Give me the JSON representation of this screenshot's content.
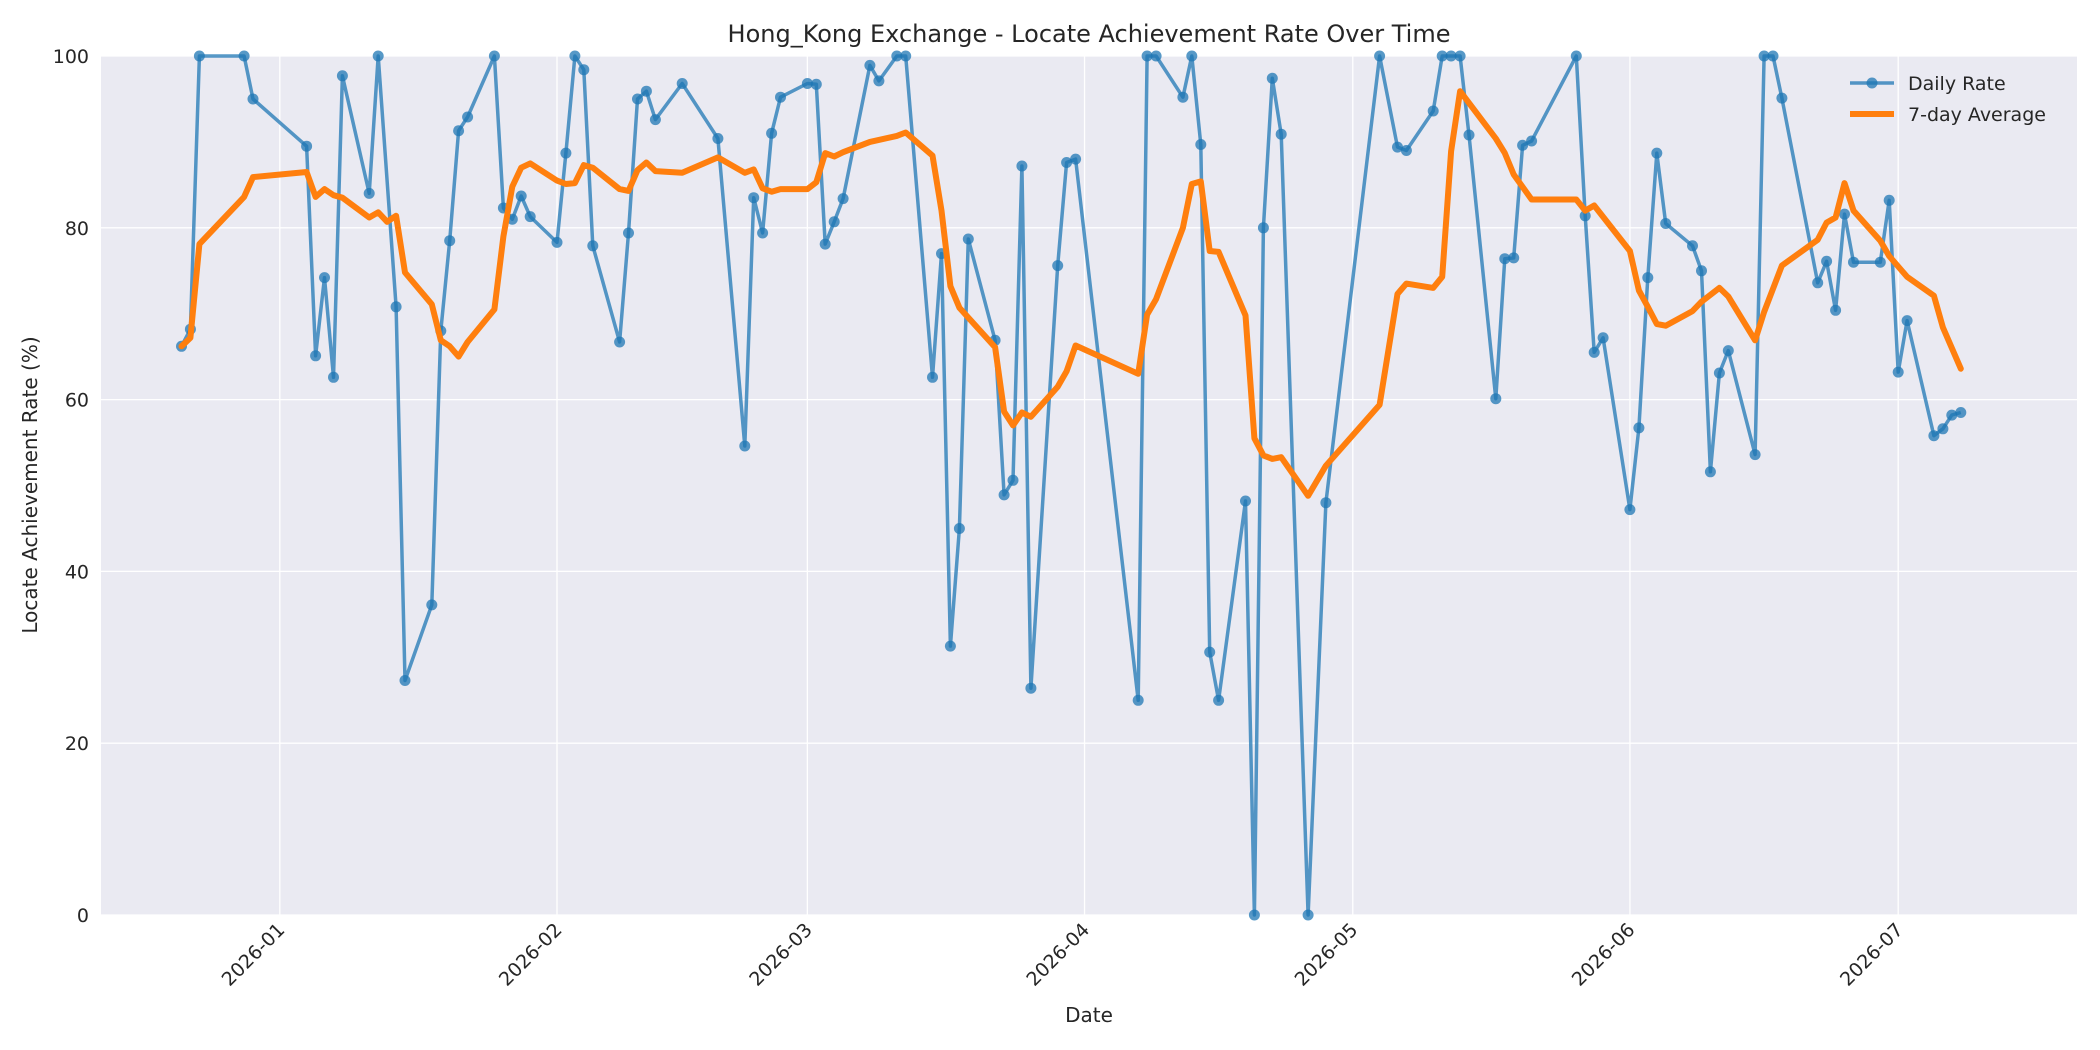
{
  "chart_data": {
    "type": "line",
    "title": "Hong_Kong Exchange - Locate Achievement Rate Over Time",
    "xlabel": "Date",
    "ylabel": "Locate Achievement Rate (%)",
    "xlim": [
      "2025-12-12",
      "2026-07-21"
    ],
    "ylim": [
      0,
      100
    ],
    "x_ticks": [
      "2026-01-01",
      "2026-02-01",
      "2026-03-01",
      "2026-04-01",
      "2026-05-01",
      "2026-06-01",
      "2026-07-01"
    ],
    "x_tick_labels": [
      "2026-01",
      "2026-02",
      "2026-03",
      "2026-04",
      "2026-05",
      "2026-06",
      "2026-07"
    ],
    "y_ticks": [
      0,
      20,
      40,
      60,
      80,
      100
    ],
    "y_tick_labels": [
      "0",
      "20",
      "40",
      "60",
      "80",
      "100"
    ],
    "grid": true,
    "legend_position": "top-right",
    "colors": {
      "daily": "#1f77b4",
      "average": "#ff7f0e",
      "plot_bg": "#eaeaf2",
      "grid": "#ffffff"
    },
    "series": [
      {
        "name": "Daily Rate",
        "style": "line-marker",
        "points": [
          [
            "2025-12-21",
            66.2
          ],
          [
            "2025-12-22",
            68.2
          ],
          [
            "2025-12-23",
            100
          ],
          [
            "2025-12-28",
            100
          ],
          [
            "2025-12-29",
            95.0
          ],
          [
            "2026-01-04",
            89.5
          ],
          [
            "2026-01-05",
            65.1
          ],
          [
            "2026-01-06",
            74.2
          ],
          [
            "2026-01-07",
            62.6
          ],
          [
            "2026-01-08",
            97.7
          ],
          [
            "2026-01-11",
            84.0
          ],
          [
            "2026-01-12",
            100
          ],
          [
            "2026-01-14",
            70.8
          ],
          [
            "2026-01-15",
            27.3
          ],
          [
            "2026-01-18",
            36.1
          ],
          [
            "2026-01-19",
            68.0
          ],
          [
            "2026-01-20",
            78.5
          ],
          [
            "2026-01-21",
            91.3
          ],
          [
            "2026-01-22",
            92.9
          ],
          [
            "2026-01-25",
            100
          ],
          [
            "2026-01-26",
            82.3
          ],
          [
            "2026-01-27",
            81.0
          ],
          [
            "2026-01-28",
            83.7
          ],
          [
            "2026-01-29",
            81.3
          ],
          [
            "2026-02-01",
            78.3
          ],
          [
            "2026-02-02",
            88.7
          ],
          [
            "2026-02-03",
            100
          ],
          [
            "2026-02-04",
            98.4
          ],
          [
            "2026-02-05",
            77.9
          ],
          [
            "2026-02-08",
            66.7
          ],
          [
            "2026-02-09",
            79.4
          ],
          [
            "2026-02-10",
            95.0
          ],
          [
            "2026-02-11",
            95.9
          ],
          [
            "2026-02-12",
            92.6
          ],
          [
            "2026-02-15",
            96.8
          ],
          [
            "2026-02-19",
            90.4
          ],
          [
            "2026-02-22",
            54.6
          ],
          [
            "2026-02-23",
            83.5
          ],
          [
            "2026-02-24",
            79.4
          ],
          [
            "2026-02-25",
            91.0
          ],
          [
            "2026-02-26",
            95.2
          ],
          [
            "2026-03-01",
            96.8
          ],
          [
            "2026-03-02",
            96.7
          ],
          [
            "2026-03-03",
            78.1
          ],
          [
            "2026-03-04",
            80.7
          ],
          [
            "2026-03-05",
            83.4
          ],
          [
            "2026-03-08",
            98.9
          ],
          [
            "2026-03-09",
            97.1
          ],
          [
            "2026-03-11",
            100
          ],
          [
            "2026-03-12",
            100
          ],
          [
            "2026-03-15",
            62.6
          ],
          [
            "2026-03-16",
            77.0
          ],
          [
            "2026-03-17",
            31.3
          ],
          [
            "2026-03-18",
            45.0
          ],
          [
            "2026-03-19",
            78.7
          ],
          [
            "2026-03-22",
            66.9
          ],
          [
            "2026-03-23",
            48.9
          ],
          [
            "2026-03-24",
            50.6
          ],
          [
            "2026-03-25",
            87.2
          ],
          [
            "2026-03-26",
            26.4
          ],
          [
            "2026-03-29",
            75.6
          ],
          [
            "2026-03-30",
            87.6
          ],
          [
            "2026-03-31",
            88.0
          ],
          [
            "2026-04-07",
            25.0
          ],
          [
            "2026-04-08",
            100
          ],
          [
            "2026-04-09",
            100
          ],
          [
            "2026-04-12",
            95.2
          ],
          [
            "2026-04-13",
            100
          ],
          [
            "2026-04-14",
            89.7
          ],
          [
            "2026-04-15",
            30.6
          ],
          [
            "2026-04-16",
            25.0
          ],
          [
            "2026-04-19",
            48.2
          ],
          [
            "2026-04-20",
            0
          ],
          [
            "2026-04-21",
            80.0
          ],
          [
            "2026-04-22",
            97.4
          ],
          [
            "2026-04-23",
            90.9
          ],
          [
            "2026-04-26",
            0
          ],
          [
            "2026-04-28",
            48.0
          ],
          [
            "2026-05-04",
            100
          ],
          [
            "2026-05-06",
            89.4
          ],
          [
            "2026-05-07",
            89.0
          ],
          [
            "2026-05-10",
            93.6
          ],
          [
            "2026-05-11",
            100
          ],
          [
            "2026-05-12",
            100
          ],
          [
            "2026-05-13",
            100
          ],
          [
            "2026-05-14",
            90.8
          ],
          [
            "2026-05-17",
            60.1
          ],
          [
            "2026-05-18",
            76.4
          ],
          [
            "2026-05-19",
            76.5
          ],
          [
            "2026-05-20",
            89.6
          ],
          [
            "2026-05-21",
            90.1
          ],
          [
            "2026-05-26",
            100
          ],
          [
            "2026-05-27",
            81.4
          ],
          [
            "2026-05-28",
            65.5
          ],
          [
            "2026-05-29",
            67.2
          ],
          [
            "2026-06-01",
            47.2
          ],
          [
            "2026-06-02",
            56.7
          ],
          [
            "2026-06-03",
            74.2
          ],
          [
            "2026-06-04",
            88.7
          ],
          [
            "2026-06-05",
            80.5
          ],
          [
            "2026-06-08",
            77.9
          ],
          [
            "2026-06-09",
            75.0
          ],
          [
            "2026-06-10",
            51.6
          ],
          [
            "2026-06-11",
            63.1
          ],
          [
            "2026-06-12",
            65.7
          ],
          [
            "2026-06-15",
            53.6
          ],
          [
            "2026-06-16",
            100
          ],
          [
            "2026-06-17",
            100
          ],
          [
            "2026-06-18",
            95.1
          ],
          [
            "2026-06-22",
            73.6
          ],
          [
            "2026-06-23",
            76.1
          ],
          [
            "2026-06-24",
            70.4
          ],
          [
            "2026-06-25",
            81.6
          ],
          [
            "2026-06-26",
            76.0
          ],
          [
            "2026-06-29",
            76.0
          ],
          [
            "2026-06-30",
            83.2
          ],
          [
            "2026-07-01",
            63.2
          ],
          [
            "2026-07-02",
            69.2
          ],
          [
            "2026-07-05",
            55.8
          ],
          [
            "2026-07-06",
            56.6
          ],
          [
            "2026-07-07",
            58.2
          ],
          [
            "2026-07-08",
            58.5
          ]
        ]
      },
      {
        "name": "7-day Average",
        "style": "line",
        "points": [
          [
            "2025-12-21",
            66.2
          ],
          [
            "2025-12-22",
            67.2
          ],
          [
            "2025-12-23",
            78.1
          ],
          [
            "2025-12-28",
            83.6
          ],
          [
            "2025-12-29",
            85.9
          ],
          [
            "2026-01-04",
            86.5
          ],
          [
            "2026-01-05",
            83.6
          ],
          [
            "2026-01-06",
            84.5
          ],
          [
            "2026-01-07",
            83.8
          ],
          [
            "2026-01-08",
            83.5
          ],
          [
            "2026-01-11",
            81.2
          ],
          [
            "2026-01-12",
            81.8
          ],
          [
            "2026-01-13",
            80.7
          ],
          [
            "2026-01-14",
            81.4
          ],
          [
            "2026-01-15",
            74.8
          ],
          [
            "2026-01-18",
            71.1
          ],
          [
            "2026-01-19",
            66.9
          ],
          [
            "2026-01-20",
            66.2
          ],
          [
            "2026-01-21",
            65.0
          ],
          [
            "2026-01-22",
            66.7
          ],
          [
            "2026-01-25",
            70.5
          ],
          [
            "2026-01-26",
            79.0
          ],
          [
            "2026-01-27",
            84.8
          ],
          [
            "2026-01-28",
            87.0
          ],
          [
            "2026-01-29",
            87.5
          ],
          [
            "2026-02-01",
            85.5
          ],
          [
            "2026-02-02",
            85.1
          ],
          [
            "2026-02-03",
            85.2
          ],
          [
            "2026-02-04",
            87.3
          ],
          [
            "2026-02-05",
            87.0
          ],
          [
            "2026-02-08",
            84.5
          ],
          [
            "2026-02-09",
            84.3
          ],
          [
            "2026-02-10",
            86.7
          ],
          [
            "2026-02-11",
            87.6
          ],
          [
            "2026-02-12",
            86.6
          ],
          [
            "2026-02-15",
            86.4
          ],
          [
            "2026-02-19",
            88.2
          ],
          [
            "2026-02-22",
            86.4
          ],
          [
            "2026-02-23",
            86.8
          ],
          [
            "2026-02-24",
            84.6
          ],
          [
            "2026-02-25",
            84.2
          ],
          [
            "2026-02-26",
            84.5
          ],
          [
            "2026-03-01",
            84.5
          ],
          [
            "2026-03-02",
            85.3
          ],
          [
            "2026-03-03",
            88.7
          ],
          [
            "2026-03-04",
            88.3
          ],
          [
            "2026-03-05",
            88.8
          ],
          [
            "2026-03-08",
            90.0
          ],
          [
            "2026-03-11",
            90.7
          ],
          [
            "2026-03-12",
            91.1
          ],
          [
            "2026-03-15",
            88.4
          ],
          [
            "2026-03-16",
            82.0
          ],
          [
            "2026-03-17",
            73.2
          ],
          [
            "2026-03-18",
            70.7
          ],
          [
            "2026-03-22",
            66.1
          ],
          [
            "2026-03-23",
            58.6
          ],
          [
            "2026-03-24",
            57.0
          ],
          [
            "2026-03-25",
            58.5
          ],
          [
            "2026-03-26",
            58.0
          ],
          [
            "2026-03-29",
            61.5
          ],
          [
            "2026-03-30",
            63.3
          ],
          [
            "2026-03-31",
            66.3
          ],
          [
            "2026-04-07",
            63.0
          ],
          [
            "2026-04-08",
            69.9
          ],
          [
            "2026-04-09",
            71.7
          ],
          [
            "2026-04-12",
            80.0
          ],
          [
            "2026-04-13",
            85.1
          ],
          [
            "2026-04-14",
            85.4
          ],
          [
            "2026-04-15",
            77.3
          ],
          [
            "2026-04-16",
            77.2
          ],
          [
            "2026-04-19",
            69.8
          ],
          [
            "2026-04-20",
            55.5
          ],
          [
            "2026-04-21",
            53.5
          ],
          [
            "2026-04-22",
            53.1
          ],
          [
            "2026-04-23",
            53.3
          ],
          [
            "2026-04-26",
            48.8
          ],
          [
            "2026-04-28",
            52.3
          ],
          [
            "2026-05-04",
            59.4
          ],
          [
            "2026-05-06",
            72.3
          ],
          [
            "2026-05-07",
            73.5
          ],
          [
            "2026-05-10",
            73.0
          ],
          [
            "2026-05-11",
            74.3
          ],
          [
            "2026-05-12",
            88.9
          ],
          [
            "2026-05-13",
            95.9
          ],
          [
            "2026-05-17",
            90.4
          ],
          [
            "2026-05-18",
            88.7
          ],
          [
            "2026-05-19",
            86.2
          ],
          [
            "2026-05-21",
            83.3
          ],
          [
            "2026-05-26",
            83.3
          ],
          [
            "2026-05-27",
            82.0
          ],
          [
            "2026-05-28",
            82.6
          ],
          [
            "2026-06-01",
            77.3
          ],
          [
            "2026-06-02",
            72.7
          ],
          [
            "2026-06-03",
            70.8
          ],
          [
            "2026-06-04",
            68.8
          ],
          [
            "2026-06-05",
            68.6
          ],
          [
            "2026-06-08",
            70.3
          ],
          [
            "2026-06-09",
            71.4
          ],
          [
            "2026-06-11",
            73.0
          ],
          [
            "2026-06-12",
            72.0
          ],
          [
            "2026-06-15",
            66.9
          ],
          [
            "2026-06-16",
            70.2
          ],
          [
            "2026-06-18",
            75.6
          ],
          [
            "2026-06-22",
            78.6
          ],
          [
            "2026-06-23",
            80.6
          ],
          [
            "2026-06-24",
            81.2
          ],
          [
            "2026-06-25",
            85.2
          ],
          [
            "2026-06-26",
            82.0
          ],
          [
            "2026-06-29",
            78.5
          ],
          [
            "2026-06-30",
            76.7
          ],
          [
            "2026-07-02",
            74.3
          ],
          [
            "2026-07-05",
            72.1
          ],
          [
            "2026-07-06",
            68.4
          ],
          [
            "2026-07-08",
            63.6
          ]
        ]
      }
    ]
  }
}
